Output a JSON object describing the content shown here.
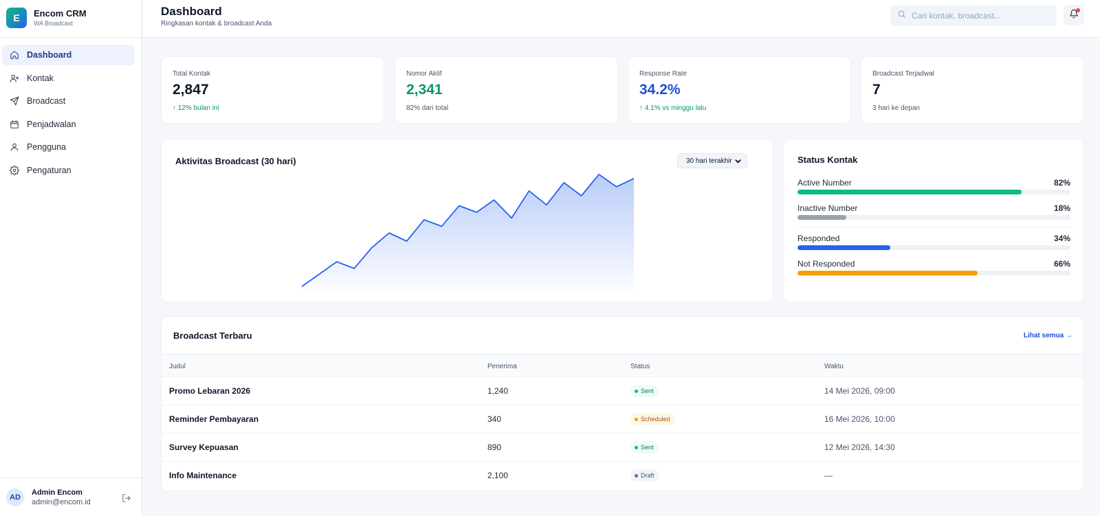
{
  "brand": {
    "logo_letter": "E",
    "name": "Encom CRM",
    "subtitle": "WA Broadcast"
  },
  "nav": {
    "items": [
      {
        "label": "Dashboard",
        "icon": "home-icon",
        "active": true
      },
      {
        "label": "Kontak",
        "icon": "user-plus-icon",
        "active": false
      },
      {
        "label": "Broadcast",
        "icon": "send-icon",
        "active": false
      },
      {
        "label": "Penjadwalan",
        "icon": "calendar-icon",
        "active": false
      },
      {
        "label": "Pengguna",
        "icon": "user-icon",
        "active": false
      },
      {
        "label": "Pengaturan",
        "icon": "gear-icon",
        "active": false
      }
    ]
  },
  "user": {
    "initials": "AD",
    "name": "Admin Encom",
    "email": "admin@encom.id"
  },
  "header": {
    "title": "Dashboard",
    "subtitle": "Ringkasan kontak & broadcast Anda",
    "search_placeholder": "Cari kontak, broadcast...",
    "has_notification": true
  },
  "stats": [
    {
      "label": "Total Kontak",
      "value": "2,847",
      "note": "↑ 12% bulan ini"
    },
    {
      "label": "Nomor Aktif",
      "value": "2,341",
      "note": "82% dari total"
    },
    {
      "label": "Response Rate",
      "value": "34.2%",
      "note": "↑ 4.1% vs minggu lalu"
    },
    {
      "label": "Broadcast Terjadwal",
      "value": "7",
      "note": "3 hari ke depan"
    }
  ],
  "activity": {
    "title": "Aktivitas Broadcast (30 hari)",
    "range_label": "30 hari terakhir"
  },
  "chart_data": {
    "type": "area",
    "title": "Aktivitas Broadcast (30 hari)",
    "xlabel": "",
    "ylabel": "",
    "grid": false,
    "legend": "none",
    "color": "#2563eb",
    "values": [
      5,
      20,
      35,
      27,
      52,
      70,
      60,
      86,
      78,
      103,
      95,
      110,
      88,
      121,
      104,
      131,
      115,
      141,
      126,
      136
    ],
    "ylim": [
      0,
      150
    ]
  },
  "status_kontak": {
    "title": "Status Kontak",
    "items": [
      {
        "label": "Active Number",
        "percent_label": "82%",
        "percent": 82,
        "color": "#10b981"
      },
      {
        "label": "Inactive Number",
        "percent_label": "18%",
        "percent": 18,
        "color": "#9ca3af"
      },
      {
        "label": "Responded",
        "percent_label": "34%",
        "percent": 34,
        "color": "#2563eb"
      },
      {
        "label": "Not Responded",
        "percent_label": "66%",
        "percent": 66,
        "color": "#f59e0b"
      }
    ]
  },
  "recent": {
    "title": "Broadcast Terbaru",
    "see_all": "Lihat semua →",
    "columns": [
      "Judul",
      "Penerima",
      "Status",
      "Waktu"
    ],
    "rows": [
      {
        "title": "Promo Lebaran 2026",
        "recipients": "1,240",
        "status": "Sent",
        "status_type": "sent",
        "time": "14 Mei 2026, 09:00"
      },
      {
        "title": "Reminder Pembayaran",
        "recipients": "340",
        "status": "Scheduled",
        "status_type": "scheduled",
        "time": "16 Mei 2026, 10:00"
      },
      {
        "title": "Survey Kepuasan",
        "recipients": "890",
        "status": "Sent",
        "status_type": "sent",
        "time": "12 Mei 2026, 14:30"
      },
      {
        "title": "Info Maintenance",
        "recipients": "2,100",
        "status": "Draft",
        "status_type": "draft",
        "time": "—"
      }
    ]
  }
}
